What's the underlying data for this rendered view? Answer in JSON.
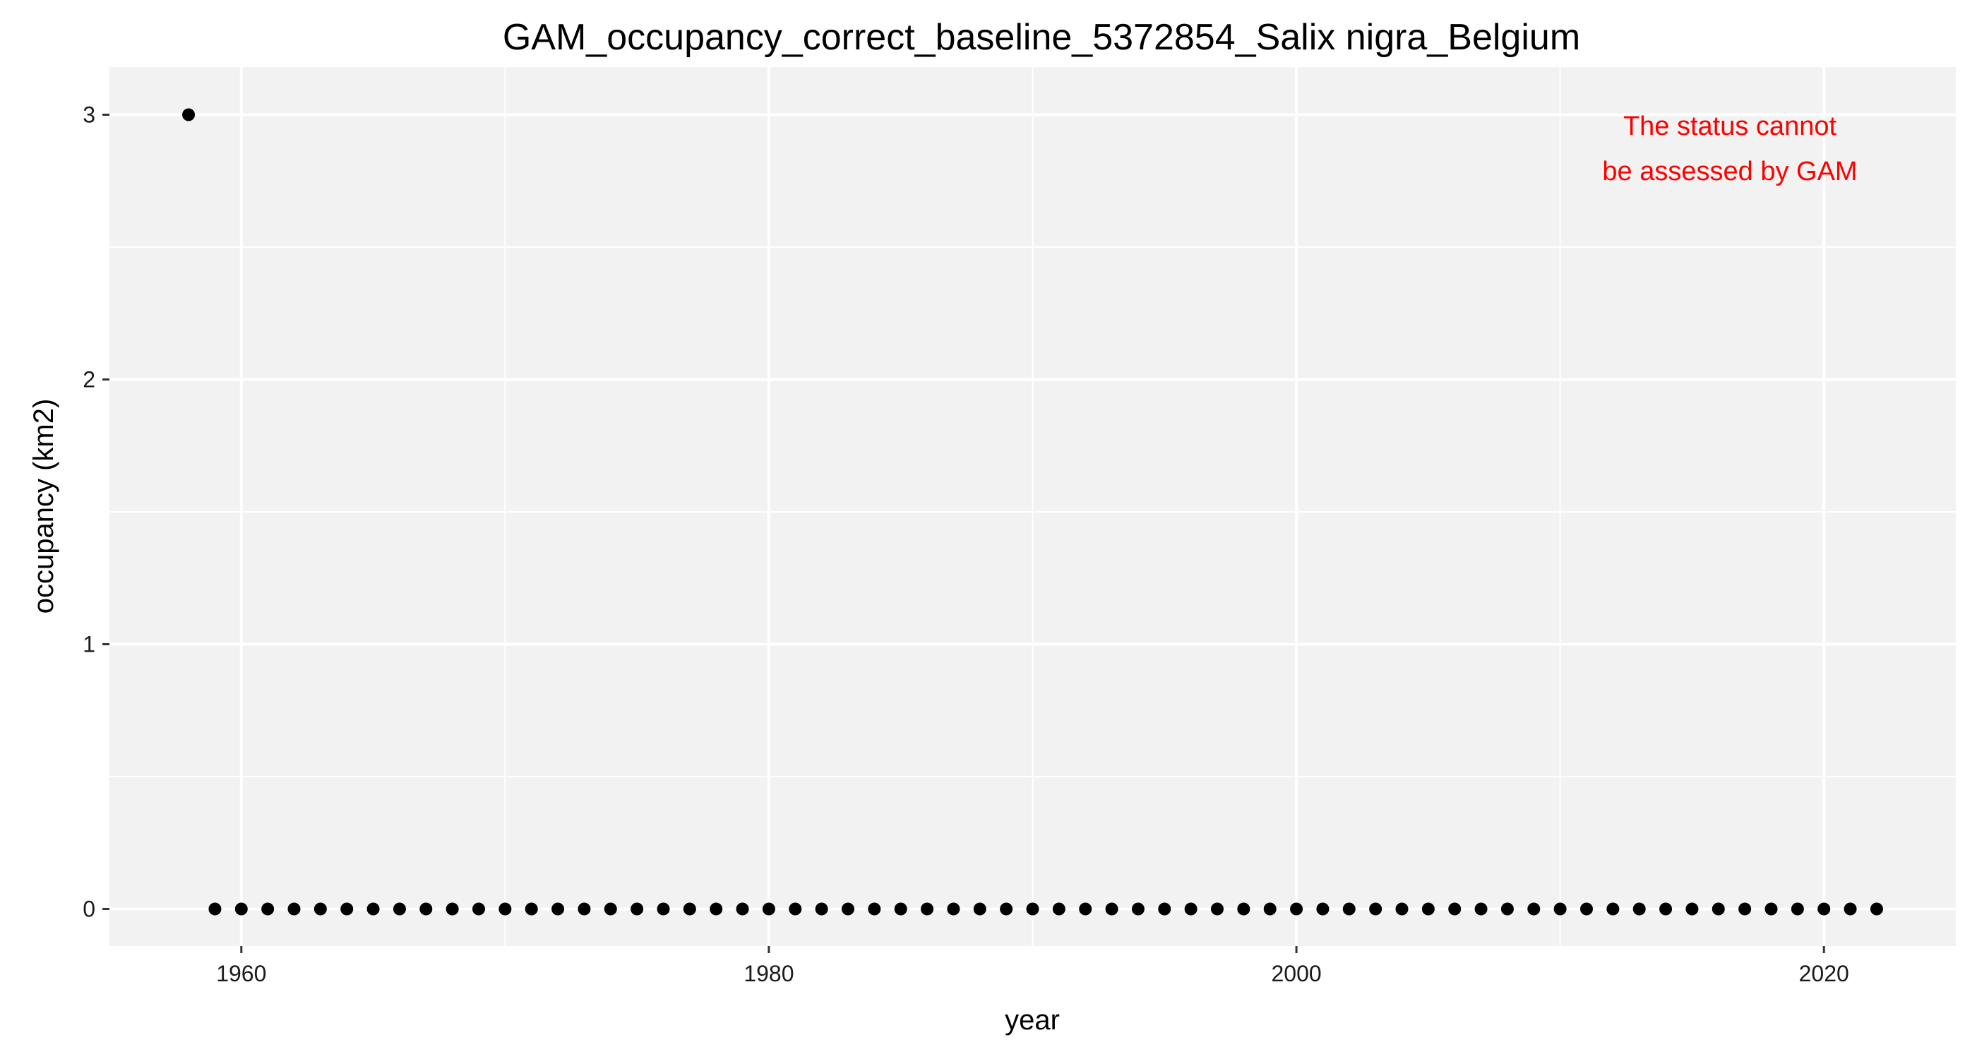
{
  "chart_data": {
    "type": "scatter",
    "title": "GAM_occupancy_correct_baseline_5372854_Salix nigra_Belgium",
    "xlabel": "year",
    "ylabel": "occupancy (km2)",
    "xlim": [
      1955,
      2025
    ],
    "ylim": [
      -0.14,
      3.18
    ],
    "x_ticks": [
      1960,
      1980,
      2000,
      2020
    ],
    "x_tick_labels": [
      "1960",
      "1980",
      "2000",
      "2020"
    ],
    "y_ticks": [
      0,
      1,
      2,
      3
    ],
    "y_tick_labels": [
      "0",
      "1",
      "2",
      "3"
    ],
    "grid": true,
    "panel_background": "#f2f2f2",
    "grid_color": "#ffffff",
    "point_color": "#000000",
    "annotation": {
      "lines": [
        "The status cannot",
        "be assessed by GAM"
      ],
      "color": "#ff0000",
      "position": "top-right"
    },
    "series": [
      {
        "x": [
          1958,
          1959,
          1960,
          1961,
          1962,
          1963,
          1964,
          1965,
          1966,
          1967,
          1968,
          1969,
          1970,
          1971,
          1972,
          1973,
          1974,
          1975,
          1976,
          1977,
          1978,
          1979,
          1980,
          1981,
          1982,
          1983,
          1984,
          1985,
          1986,
          1987,
          1988,
          1989,
          1990,
          1991,
          1992,
          1993,
          1994,
          1995,
          1996,
          1997,
          1998,
          1999,
          2000,
          2001,
          2002,
          2003,
          2004,
          2005,
          2006,
          2007,
          2008,
          2009,
          2010,
          2011,
          2012,
          2013,
          2014,
          2015,
          2016,
          2017,
          2018,
          2019,
          2020,
          2021,
          2022
        ],
        "y": [
          3,
          0,
          0,
          0,
          0,
          0,
          0,
          0,
          0,
          0,
          0,
          0,
          0,
          0,
          0,
          0,
          0,
          0,
          0,
          0,
          0,
          0,
          0,
          0,
          0,
          0,
          0,
          0,
          0,
          0,
          0,
          0,
          0,
          0,
          0,
          0,
          0,
          0,
          0,
          0,
          0,
          0,
          0,
          0,
          0,
          0,
          0,
          0,
          0,
          0,
          0,
          0,
          0,
          0,
          0,
          0,
          0,
          0,
          0,
          0,
          0,
          0,
          0,
          0,
          0
        ]
      }
    ]
  }
}
